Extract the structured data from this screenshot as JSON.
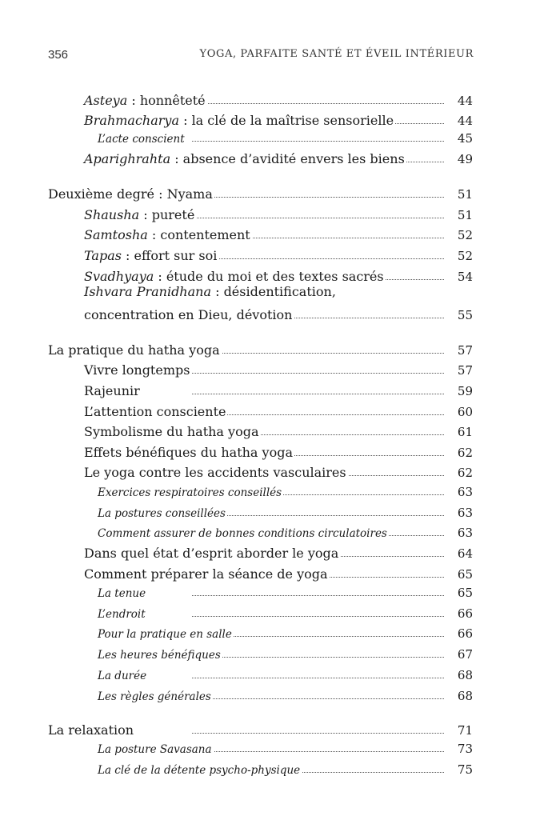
{
  "header": {
    "page_number": "356",
    "book_title": "YOGA, PARFAITE SANTÉ ET ÉVEIL INTÉRIEUR"
  },
  "entries": [
    {
      "level": 1,
      "em": "Asteya",
      "text": " : honnêteté",
      "page": "44"
    },
    {
      "level": 1,
      "em": "Brahmacharya",
      "text": " : la clé de la maîtrise sensorielle",
      "page": "44"
    },
    {
      "level": 2,
      "em": "",
      "text": "L’acte conscient",
      "page": "45"
    },
    {
      "level": 1,
      "em": "Aparighrahta",
      "text": " : absence d’avidité envers les biens",
      "page": "49"
    },
    {
      "level": 0,
      "em": "",
      "text": "Deuxième degré : Nyama",
      "page": "51"
    },
    {
      "level": 1,
      "em": "Shausha",
      "text": " : pureté",
      "page": "51"
    },
    {
      "level": 1,
      "em": "Samtosha",
      "text": " : contentement",
      "page": "52"
    },
    {
      "level": 1,
      "em": "Tapas",
      "text": " : effort sur soi",
      "page": "52"
    },
    {
      "level": 1,
      "em": "Svadhyaya",
      "text": " : étude du moi et des textes sacrés",
      "page": "54"
    },
    {
      "level": 1,
      "em": "Ishvara Pranidhana",
      "text": " : désidentification,",
      "text2": "concentration en Dieu, dévotion",
      "page": "55"
    },
    {
      "level": 0,
      "em": "",
      "text": "La pratique du hatha yoga",
      "page": "57"
    },
    {
      "level": 1,
      "em": "",
      "text": "Vivre longtemps",
      "page": "57"
    },
    {
      "level": 1,
      "em": "",
      "text": "Rajeunir",
      "page": "59"
    },
    {
      "level": 1,
      "em": "",
      "text": "L’attention consciente",
      "page": "60"
    },
    {
      "level": 1,
      "em": "",
      "text": "Symbolisme du hatha yoga",
      "page": "61"
    },
    {
      "level": 1,
      "em": "",
      "text": "Effets bénéfiques du hatha yoga",
      "page": "62"
    },
    {
      "level": 1,
      "em": "",
      "text": "Le yoga contre les accidents vasculaires",
      "page": "62"
    },
    {
      "level": 2,
      "em": "",
      "text": "Exercices respiratoires conseillés",
      "page": "63"
    },
    {
      "level": 2,
      "em": "",
      "text": "La postures conseillées",
      "page": "63"
    },
    {
      "level": 2,
      "em": "",
      "text": "Comment assurer de bonnes conditions circulatoires",
      "page": "63"
    },
    {
      "level": 1,
      "em": "",
      "text": "Dans quel état d’esprit aborder le yoga",
      "page": "64"
    },
    {
      "level": 1,
      "em": "",
      "text": "Comment préparer la séance de yoga",
      "page": "65"
    },
    {
      "level": 2,
      "em": "",
      "text": "La tenue",
      "page": "65"
    },
    {
      "level": 2,
      "em": "",
      "text": "L’endroit",
      "page": "66"
    },
    {
      "level": 2,
      "em": "",
      "text": "Pour la pratique en salle",
      "page": "66"
    },
    {
      "level": 2,
      "em": "",
      "text": "Les heures bénéfiques",
      "page": "67"
    },
    {
      "level": 2,
      "em": "",
      "text": "La durée",
      "page": "68"
    },
    {
      "level": 2,
      "em": "",
      "text": "Les règles générales",
      "page": "68"
    },
    {
      "level": 0,
      "em": "",
      "text": "La relaxation",
      "page": "71"
    },
    {
      "level": 2,
      "em": "",
      "text": "La posture Savasana",
      "page": "73"
    },
    {
      "level": 2,
      "em": "",
      "text": "La clé de la détente psycho-physique",
      "page": "75"
    }
  ]
}
